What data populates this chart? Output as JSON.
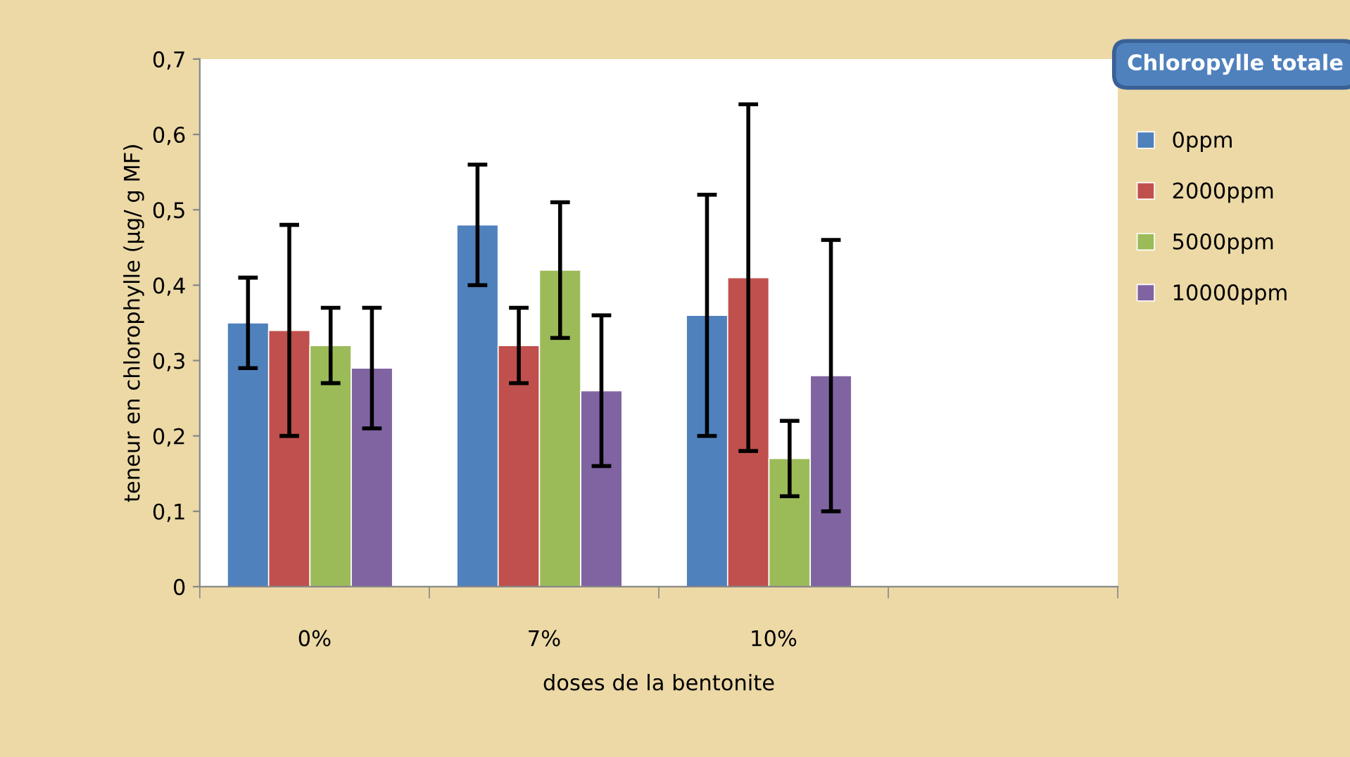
{
  "chart_data": {
    "type": "bar",
    "title": "Chloropylle totale",
    "xlabel": "doses de la bentonite",
    "ylabel": "teneur en chlorophylle (µg/ g MF)",
    "categories": [
      "0%",
      "7%",
      "10%",
      null
    ],
    "series": [
      {
        "name": "0ppm",
        "color": "#4f81bd",
        "values": [
          0.35,
          0.48,
          0.36,
          null
        ],
        "errors": [
          0.06,
          0.08,
          0.16,
          null
        ]
      },
      {
        "name": "2000ppm",
        "color": "#c0504d",
        "values": [
          0.34,
          0.32,
          0.41,
          null
        ],
        "errors": [
          0.14,
          0.05,
          0.23,
          null
        ]
      },
      {
        "name": "5000ppm",
        "color": "#9bbb59",
        "values": [
          0.32,
          0.42,
          0.17,
          null
        ],
        "errors": [
          0.05,
          0.09,
          0.05,
          null
        ]
      },
      {
        "name": "10000ppm",
        "color": "#8064a2",
        "values": [
          0.29,
          0.26,
          0.28,
          null
        ],
        "errors": [
          0.08,
          0.1,
          0.18,
          null
        ]
      }
    ],
    "ylim": [
      0,
      0.7
    ],
    "yticks": [
      0,
      {
        "value": 0.1,
        "label": "0,1"
      },
      {
        "value": 0.2,
        "label": "0,2"
      },
      {
        "value": 0.3,
        "label": "0,3"
      },
      {
        "value": 0.4,
        "label": "0,4"
      },
      {
        "value": 0.5,
        "label": "0,5"
      },
      {
        "value": 0.6,
        "label": "0,6"
      },
      {
        "value": 0.7,
        "label": "0,7"
      }
    ],
    "legend": "right",
    "grid": false
  }
}
